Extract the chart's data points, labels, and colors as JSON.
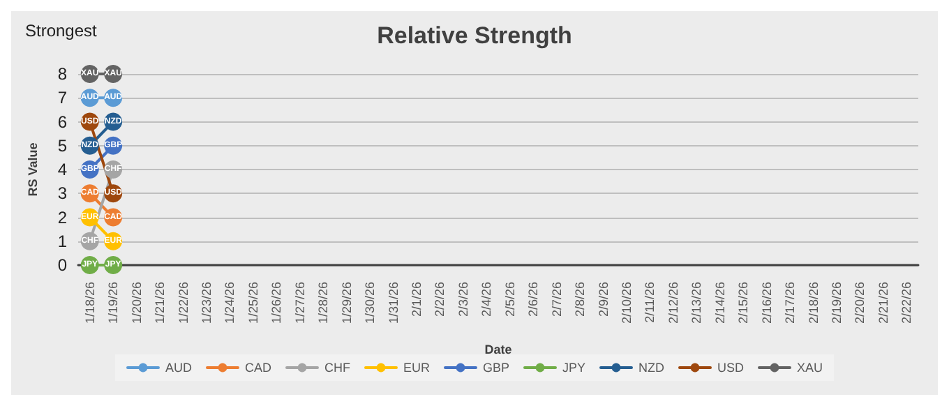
{
  "chart_data": {
    "type": "line",
    "title": "Relative Strength",
    "xlabel": "Date",
    "ylabel": "RS Value",
    "annotations": [
      "Strongest"
    ],
    "categories": [
      "1/18/26",
      "1/19/26",
      "1/20/26",
      "1/21/26",
      "1/22/26",
      "1/23/26",
      "1/24/26",
      "1/25/26",
      "1/26/26",
      "1/27/26",
      "1/28/26",
      "1/29/26",
      "1/30/26",
      "1/31/26",
      "2/1/26",
      "2/2/26",
      "2/3/26",
      "2/4/26",
      "2/5/26",
      "2/6/26",
      "2/7/26",
      "2/8/26",
      "2/9/26",
      "2/10/26",
      "2/11/26",
      "2/12/26",
      "2/13/26",
      "2/14/26",
      "2/15/26",
      "2/16/26",
      "2/17/26",
      "2/18/26",
      "2/19/26",
      "2/20/26",
      "2/21/26",
      "2/22/26"
    ],
    "series": [
      {
        "name": "AUD",
        "color": "#5b9bd5",
        "values": [
          7,
          7,
          null,
          null,
          null,
          null,
          null,
          null,
          null,
          null,
          null,
          null,
          null,
          null,
          null,
          null,
          null,
          null,
          null,
          null,
          null,
          null,
          null,
          null,
          null,
          null,
          null,
          null,
          null,
          null,
          null,
          null,
          null,
          null,
          null,
          null
        ]
      },
      {
        "name": "CAD",
        "color": "#ed7d31",
        "values": [
          3,
          2,
          null,
          null,
          null,
          null,
          null,
          null,
          null,
          null,
          null,
          null,
          null,
          null,
          null,
          null,
          null,
          null,
          null,
          null,
          null,
          null,
          null,
          null,
          null,
          null,
          null,
          null,
          null,
          null,
          null,
          null,
          null,
          null,
          null,
          null
        ]
      },
      {
        "name": "CHF",
        "color": "#a5a5a5",
        "values": [
          1,
          4,
          null,
          null,
          null,
          null,
          null,
          null,
          null,
          null,
          null,
          null,
          null,
          null,
          null,
          null,
          null,
          null,
          null,
          null,
          null,
          null,
          null,
          null,
          null,
          null,
          null,
          null,
          null,
          null,
          null,
          null,
          null,
          null,
          null,
          null
        ]
      },
      {
        "name": "EUR",
        "color": "#ffc000",
        "values": [
          2,
          1,
          null,
          null,
          null,
          null,
          null,
          null,
          null,
          null,
          null,
          null,
          null,
          null,
          null,
          null,
          null,
          null,
          null,
          null,
          null,
          null,
          null,
          null,
          null,
          null,
          null,
          null,
          null,
          null,
          null,
          null,
          null,
          null,
          null,
          null
        ]
      },
      {
        "name": "GBP",
        "color": "#4472c4",
        "values": [
          4,
          5,
          null,
          null,
          null,
          null,
          null,
          null,
          null,
          null,
          null,
          null,
          null,
          null,
          null,
          null,
          null,
          null,
          null,
          null,
          null,
          null,
          null,
          null,
          null,
          null,
          null,
          null,
          null,
          null,
          null,
          null,
          null,
          null,
          null,
          null
        ]
      },
      {
        "name": "JPY",
        "color": "#70ad47",
        "values": [
          0,
          0,
          null,
          null,
          null,
          null,
          null,
          null,
          null,
          null,
          null,
          null,
          null,
          null,
          null,
          null,
          null,
          null,
          null,
          null,
          null,
          null,
          null,
          null,
          null,
          null,
          null,
          null,
          null,
          null,
          null,
          null,
          null,
          null,
          null,
          null
        ]
      },
      {
        "name": "NZD",
        "color": "#255e91",
        "values": [
          5,
          6,
          null,
          null,
          null,
          null,
          null,
          null,
          null,
          null,
          null,
          null,
          null,
          null,
          null,
          null,
          null,
          null,
          null,
          null,
          null,
          null,
          null,
          null,
          null,
          null,
          null,
          null,
          null,
          null,
          null,
          null,
          null,
          null,
          null,
          null
        ]
      },
      {
        "name": "USD",
        "color": "#9e480e",
        "values": [
          6,
          3,
          null,
          null,
          null,
          null,
          null,
          null,
          null,
          null,
          null,
          null,
          null,
          null,
          null,
          null,
          null,
          null,
          null,
          null,
          null,
          null,
          null,
          null,
          null,
          null,
          null,
          null,
          null,
          null,
          null,
          null,
          null,
          null,
          null,
          null
        ]
      },
      {
        "name": "XAU",
        "color": "#636363",
        "values": [
          8,
          8,
          null,
          null,
          null,
          null,
          null,
          null,
          null,
          null,
          null,
          null,
          null,
          null,
          null,
          null,
          null,
          null,
          null,
          null,
          null,
          null,
          null,
          null,
          null,
          null,
          null,
          null,
          null,
          null,
          null,
          null,
          null,
          null,
          null,
          null
        ]
      }
    ],
    "ylim": [
      0,
      8
    ],
    "yticks": [
      0,
      1,
      2,
      3,
      4,
      5,
      6,
      7,
      8
    ],
    "grid": "y",
    "legend": "bottom",
    "marker": "circle",
    "line_style": "solid"
  }
}
